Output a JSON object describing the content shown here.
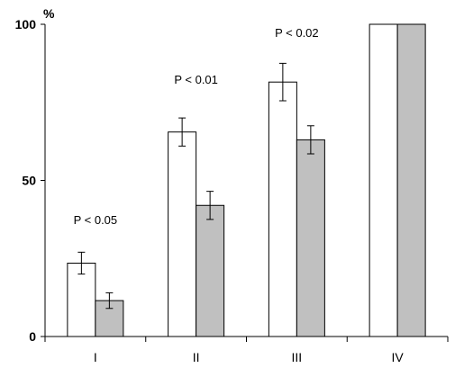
{
  "chart_data": {
    "type": "bar",
    "ylabel": "%",
    "ylim": [
      0,
      100
    ],
    "yticks": [
      0,
      50,
      100
    ],
    "categories": [
      "I",
      "II",
      "III",
      "IV"
    ],
    "series": [
      {
        "color": "#ffffff",
        "values": [
          23.5,
          65.5,
          81.5,
          100
        ],
        "errors": [
          3.5,
          4.5,
          6.0,
          0
        ]
      },
      {
        "color": "#c0c0c0",
        "values": [
          11.5,
          42.0,
          63.0,
          100
        ],
        "errors": [
          2.5,
          4.5,
          4.5,
          0
        ]
      }
    ],
    "annotations": [
      {
        "category_index": 0,
        "text": "P < 0.05",
        "y": 36
      },
      {
        "category_index": 1,
        "text": "P < 0.01",
        "y": 81
      },
      {
        "category_index": 2,
        "text": "P < 0.02",
        "y": 96
      }
    ],
    "grid": false,
    "legend": "none"
  }
}
